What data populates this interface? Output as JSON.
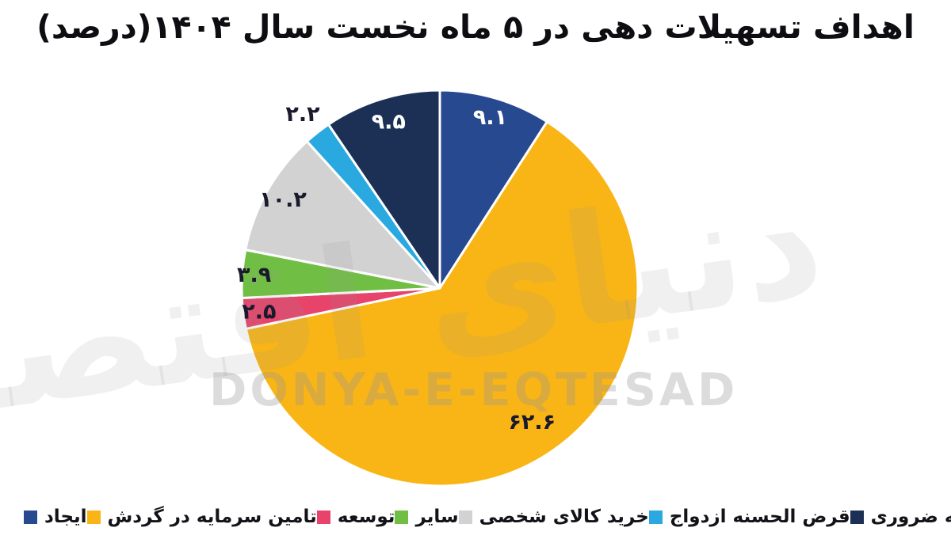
{
  "watermark": {
    "latin": "DONYA-E-EQTESAD",
    "farsi": "دنیای اقتصاد"
  },
  "chart_data": {
    "type": "pie",
    "title": "اهداف تسهیلات دهی در ۵ ماه نخست سال ۱۴۰۴(درصد)",
    "unit": "درصد",
    "start_angle_deg": 0,
    "direction": "clockwise",
    "legend_position": "bottom",
    "grid": false,
    "series": [
      {
        "label": "ایجاد",
        "value": 9.1,
        "display_value": "۹.۱",
        "color": "#27498F",
        "label_color": "#FFFFFF",
        "label_r": 0.9
      },
      {
        "label": "تامین سرمایه در گردش",
        "value": 62.6,
        "display_value": "۶۲.۶",
        "color": "#F9B515",
        "label_color": "#1A1A2E",
        "label_r": 0.82
      },
      {
        "label": "توسعه",
        "value": 2.5,
        "display_value": "۲.۵",
        "color": "#E8436A",
        "label_color": "#1A1A2E",
        "label_r": 0.92
      },
      {
        "label": "سایر",
        "value": 3.9,
        "display_value": "۳.۹",
        "color": "#70BF44",
        "label_color": "#1A1A2E",
        "label_r": 0.94
      },
      {
        "label": "خرید کالای شخصی",
        "value": 10.2,
        "display_value": "۱۰.۲",
        "color": "#D2D2D2",
        "label_color": "#1A1A2E",
        "label_r": 0.91
      },
      {
        "label": "قرض الحسنه ازدواج",
        "value": 2.2,
        "display_value": "۲.۲",
        "color": "#2AA9E0",
        "label_color": "#1A1A2E",
        "label_r": 1.12
      },
      {
        "label": "قرض الحسنه ضروری",
        "value": 9.5,
        "display_value": "۹.۵",
        "color": "#1C3056",
        "label_color": "#FFFFFF",
        "label_r": 0.88
      }
    ]
  }
}
